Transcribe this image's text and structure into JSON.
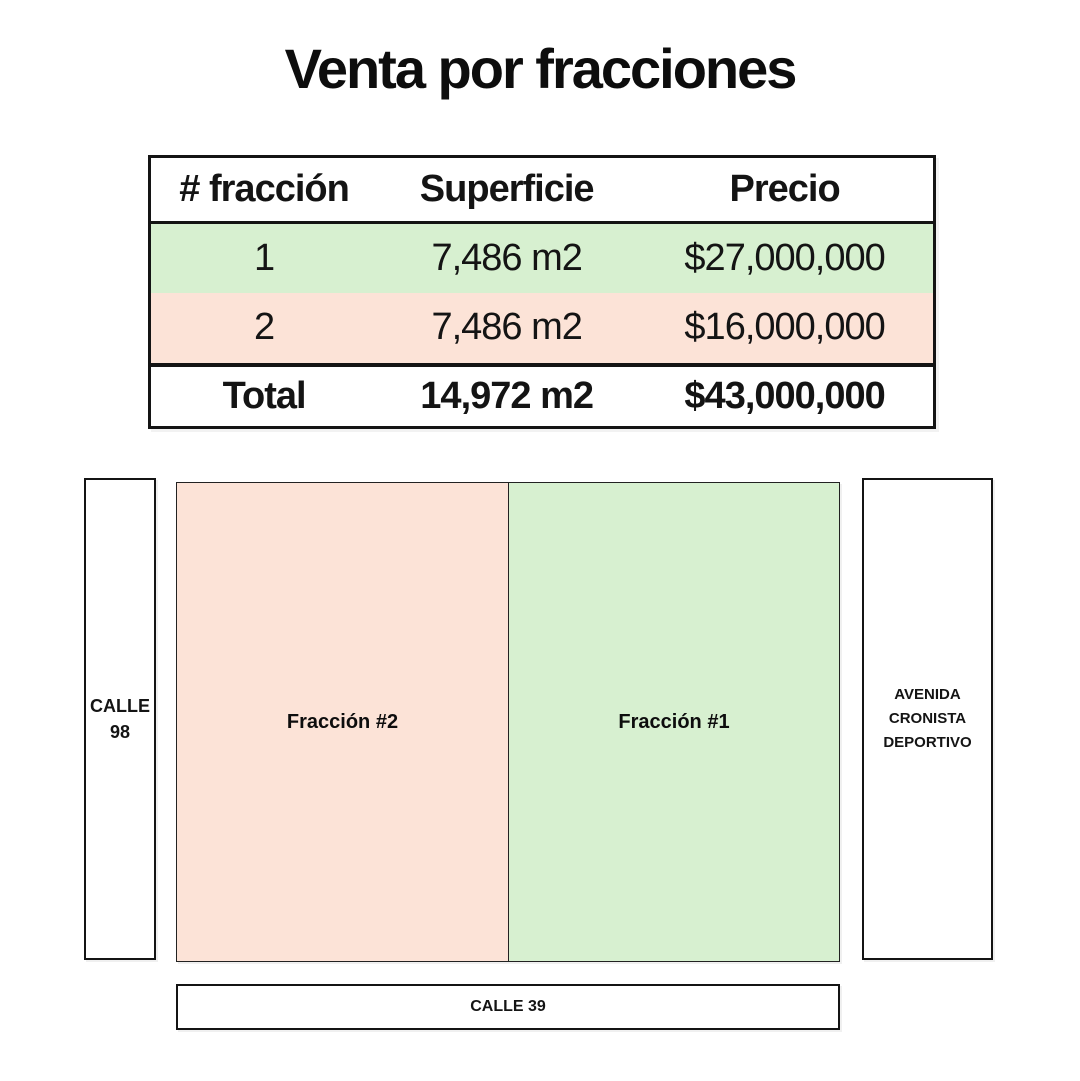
{
  "title": "Venta por fracciones",
  "colors": {
    "green": "#d7f0d0",
    "pink": "#fce3d7",
    "border": "#141414",
    "text": "#141414"
  },
  "table": {
    "headers": [
      "# fracción",
      "Superficie",
      "Precio"
    ],
    "rows": [
      {
        "fraccion": "1",
        "superficie": "7,486 m2",
        "precio": "$27,000,000"
      },
      {
        "fraccion": "2",
        "superficie": "7,486 m2",
        "precio": "$16,000,000"
      }
    ],
    "total": {
      "label": "Total",
      "superficie": "14,972 m2",
      "precio": "$43,000,000"
    }
  },
  "diagram": {
    "street_left": "CALLE\n98",
    "street_right": "AVENIDA\nCRONISTA\nDEPORTIVO",
    "street_bottom": "CALLE 39",
    "fraction_2_label": "Fracción #2",
    "fraction_1_label": "Fracción #1"
  }
}
